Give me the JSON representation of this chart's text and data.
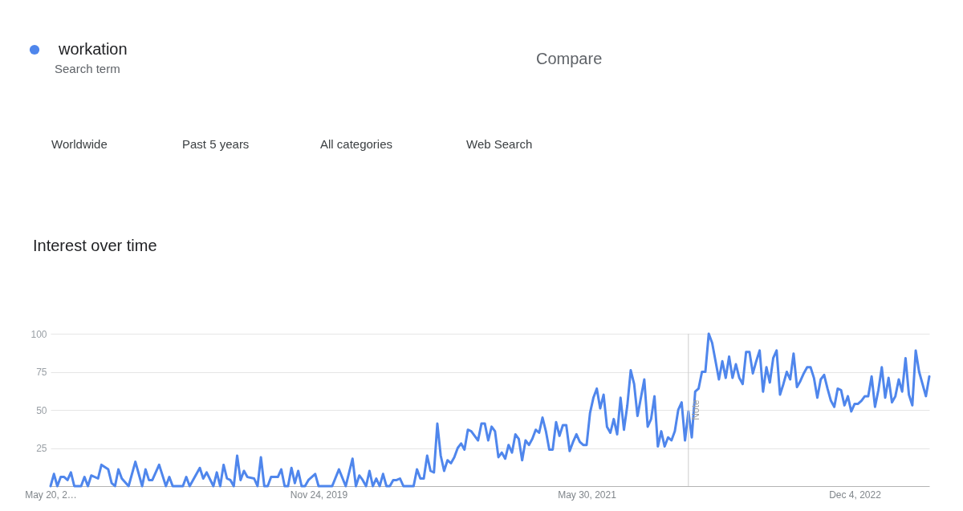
{
  "chart_data": {
    "type": "line",
    "title": "Interest over time",
    "x": [
      "2018-05-20",
      "2018-05-27",
      "2018-06-03",
      "2018-06-10",
      "2018-06-17",
      "2018-06-24",
      "2018-07-01",
      "2018-07-08",
      "2018-07-22",
      "2018-07-29",
      "2018-08-05",
      "2018-08-12",
      "2018-08-26",
      "2018-09-02",
      "2018-09-16",
      "2018-09-23",
      "2018-09-30",
      "2018-10-07",
      "2018-10-14",
      "2018-10-28",
      "2018-11-11",
      "2018-11-25",
      "2018-12-02",
      "2018-12-09",
      "2018-12-16",
      "2018-12-30",
      "2019-01-13",
      "2019-01-20",
      "2019-01-27",
      "2019-02-17",
      "2019-02-24",
      "2019-03-03",
      "2019-03-24",
      "2019-03-31",
      "2019-04-07",
      "2019-04-21",
      "2019-04-28",
      "2019-05-05",
      "2019-05-12",
      "2019-05-19",
      "2019-05-26",
      "2019-06-02",
      "2019-06-09",
      "2019-06-16",
      "2019-06-23",
      "2019-06-30",
      "2019-07-14",
      "2019-07-21",
      "2019-07-28",
      "2019-08-04",
      "2019-08-11",
      "2019-08-18",
      "2019-09-01",
      "2019-09-08",
      "2019-09-15",
      "2019-09-22",
      "2019-09-29",
      "2019-10-06",
      "2019-10-13",
      "2019-10-20",
      "2019-10-27",
      "2019-11-03",
      "2019-11-17",
      "2019-11-24",
      "2019-12-22",
      "2020-01-05",
      "2020-01-19",
      "2020-02-02",
      "2020-02-09",
      "2020-02-16",
      "2020-02-23",
      "2020-03-01",
      "2020-03-08",
      "2020-03-15",
      "2020-03-22",
      "2020-03-29",
      "2020-04-05",
      "2020-04-12",
      "2020-04-19",
      "2020-04-26",
      "2020-05-03",
      "2020-05-10",
      "2020-05-17",
      "2020-06-07",
      "2020-06-14",
      "2020-06-21",
      "2020-06-28",
      "2020-07-05",
      "2020-07-12",
      "2020-07-19",
      "2020-07-26",
      "2020-08-02",
      "2020-08-09",
      "2020-08-16",
      "2020-08-23",
      "2020-08-30",
      "2020-09-06",
      "2020-09-13",
      "2020-09-20",
      "2020-09-27",
      "2020-10-04",
      "2020-10-11",
      "2020-10-18",
      "2020-10-25",
      "2020-11-01",
      "2020-11-08",
      "2020-11-15",
      "2020-11-22",
      "2020-11-29",
      "2020-12-06",
      "2020-12-13",
      "2020-12-20",
      "2020-12-27",
      "2021-01-03",
      "2021-01-10",
      "2021-01-17",
      "2021-01-24",
      "2021-01-31",
      "2021-02-07",
      "2021-02-14",
      "2021-02-21",
      "2021-02-28",
      "2021-03-07",
      "2021-03-14",
      "2021-03-21",
      "2021-03-28",
      "2021-04-04",
      "2021-04-11",
      "2021-04-18",
      "2021-04-25",
      "2021-05-02",
      "2021-05-09",
      "2021-05-16",
      "2021-05-23",
      "2021-05-30",
      "2021-06-06",
      "2021-06-13",
      "2021-06-20",
      "2021-06-27",
      "2021-07-04",
      "2021-07-11",
      "2021-07-18",
      "2021-07-25",
      "2021-08-01",
      "2021-08-08",
      "2021-08-15",
      "2021-08-22",
      "2021-08-29",
      "2021-09-05",
      "2021-09-12",
      "2021-09-26",
      "2021-10-03",
      "2021-10-10",
      "2021-10-17",
      "2021-10-24",
      "2021-10-31",
      "2021-11-07",
      "2021-11-14",
      "2021-11-21",
      "2021-11-28",
      "2021-12-05",
      "2021-12-12",
      "2021-12-19",
      "2021-12-26",
      "2022-01-02",
      "2022-01-09",
      "2022-01-16",
      "2022-01-23",
      "2022-01-30",
      "2022-02-06",
      "2022-02-13",
      "2022-02-27",
      "2022-03-06",
      "2022-03-13",
      "2022-03-20",
      "2022-03-27",
      "2022-04-03",
      "2022-04-10",
      "2022-04-17",
      "2022-04-24",
      "2022-05-01",
      "2022-05-08",
      "2022-05-15",
      "2022-05-22",
      "2022-05-29",
      "2022-06-05",
      "2022-06-12",
      "2022-06-19",
      "2022-06-26",
      "2022-07-03",
      "2022-07-10",
      "2022-07-17",
      "2022-07-24",
      "2022-07-31",
      "2022-08-07",
      "2022-08-14",
      "2022-08-21",
      "2022-08-28",
      "2022-09-04",
      "2022-09-11",
      "2022-09-18",
      "2022-09-25",
      "2022-10-02",
      "2022-10-09",
      "2022-10-16",
      "2022-10-23",
      "2022-10-30",
      "2022-11-06",
      "2022-11-13",
      "2022-11-20",
      "2022-11-27",
      "2022-12-04",
      "2022-12-11",
      "2022-12-18",
      "2022-12-25",
      "2023-01-01",
      "2023-01-08",
      "2023-01-15",
      "2023-01-22",
      "2023-01-29",
      "2023-02-05",
      "2023-02-12",
      "2023-02-19",
      "2023-02-26",
      "2023-03-05",
      "2023-03-12",
      "2023-03-19",
      "2023-03-26",
      "2023-04-02",
      "2023-04-09",
      "2023-04-16",
      "2023-04-23",
      "2023-04-30",
      "2023-05-07"
    ],
    "series": [
      {
        "name": "workation",
        "color": "#4f86ec",
        "values": [
          0,
          8,
          0,
          6,
          6,
          4,
          9,
          0,
          0,
          6,
          0,
          7,
          5,
          14,
          11,
          2,
          0,
          11,
          5,
          0,
          16,
          0,
          11,
          4,
          4,
          14,
          0,
          6,
          0,
          0,
          6,
          0,
          12,
          5,
          9,
          0,
          9,
          0,
          14,
          5,
          4,
          0,
          20,
          4,
          10,
          6,
          5,
          0,
          19,
          0,
          0,
          6,
          6,
          11,
          0,
          0,
          12,
          2,
          10,
          0,
          0,
          4,
          8,
          0,
          0,
          11,
          0,
          18,
          0,
          7,
          4,
          0,
          10,
          0,
          5,
          0,
          8,
          0,
          0,
          4,
          4,
          5,
          0,
          0,
          11,
          5,
          5,
          20,
          10,
          9,
          41,
          20,
          10,
          17,
          15,
          19,
          25,
          28,
          24,
          37,
          36,
          33,
          30,
          41,
          41,
          30,
          39,
          36,
          19,
          22,
          18,
          27,
          22,
          34,
          31,
          17,
          30,
          27,
          31,
          37,
          35,
          45,
          36,
          24,
          24,
          42,
          33,
          40,
          40,
          23,
          29,
          34,
          29,
          27,
          27,
          48,
          58,
          64,
          51,
          60,
          39,
          35,
          44,
          34,
          58,
          37,
          53,
          76,
          67,
          46,
          70,
          39,
          44,
          59,
          26,
          36,
          26,
          32,
          30,
          36,
          50,
          55,
          30,
          49,
          32,
          62,
          64,
          75,
          75,
          100,
          94,
          70,
          82,
          71,
          85,
          71,
          80,
          71,
          67,
          88,
          88,
          74,
          82,
          89,
          62,
          78,
          68,
          84,
          89,
          60,
          67,
          75,
          70,
          87,
          65,
          69,
          74,
          78,
          78,
          71,
          58,
          70,
          73,
          64,
          56,
          52,
          64,
          63,
          53,
          59,
          49,
          54,
          54,
          56,
          59,
          59,
          72,
          52,
          63,
          78,
          58,
          71,
          55,
          59,
          70,
          62,
          84,
          60,
          53,
          89,
          75,
          67,
          59,
          72
        ]
      }
    ],
    "xlim": [
      "2018-05-20",
      "2023-05-07"
    ],
    "xticks": [
      {
        "value": "2018-05-20",
        "label": "May 20, 2…"
      },
      {
        "value": "2019-11-24",
        "label": "Nov 24, 2019"
      },
      {
        "value": "2021-05-30",
        "label": "May 30, 2021"
      },
      {
        "value": "2022-12-04",
        "label": "Dec 4, 2022"
      }
    ],
    "ylim": [
      0,
      100
    ],
    "yticks": [
      25,
      50,
      75,
      100
    ],
    "grid": "y",
    "legend": "top left",
    "ref_lines": [
      {
        "axis": "x",
        "value": "2021-12-26",
        "label": "Note",
        "color": "#cccccc"
      }
    ],
    "annotations": [
      "Search term",
      "Compare",
      "Worldwide",
      "Past 5 years",
      "All categories",
      "Web Search"
    ]
  }
}
